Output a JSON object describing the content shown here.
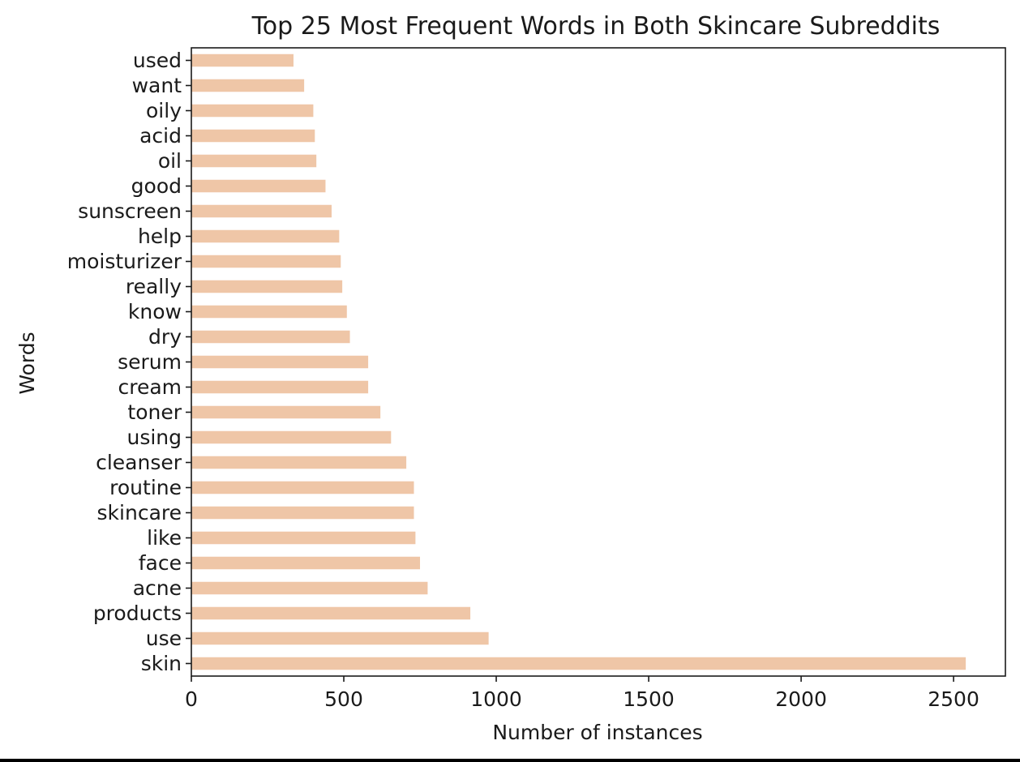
{
  "chart_data": {
    "type": "bar",
    "orientation": "horizontal",
    "title": "Top 25 Most Frequent Words in Both Skincare Subreddits",
    "xlabel": "Number of instances",
    "ylabel": "Words",
    "categories": [
      "skin",
      "use",
      "products",
      "acne",
      "face",
      "like",
      "skincare",
      "routine",
      "cleanser",
      "using",
      "toner",
      "cream",
      "serum",
      "dry",
      "know",
      "really",
      "moisturizer",
      "help",
      "sunscreen",
      "good",
      "oil",
      "acid",
      "oily",
      "want",
      "used"
    ],
    "values": [
      2540,
      975,
      915,
      775,
      750,
      735,
      730,
      730,
      705,
      655,
      620,
      580,
      580,
      520,
      510,
      495,
      490,
      485,
      460,
      440,
      410,
      405,
      400,
      370,
      335
    ],
    "xlim": [
      0,
      2670
    ],
    "xticks": [
      0,
      500,
      1000,
      1500,
      2000,
      2500
    ],
    "xtick_labels": [
      "0",
      "500",
      "1000",
      "1500",
      "2000",
      "2500"
    ],
    "grid": false,
    "bar_color": "#efc6a7"
  }
}
